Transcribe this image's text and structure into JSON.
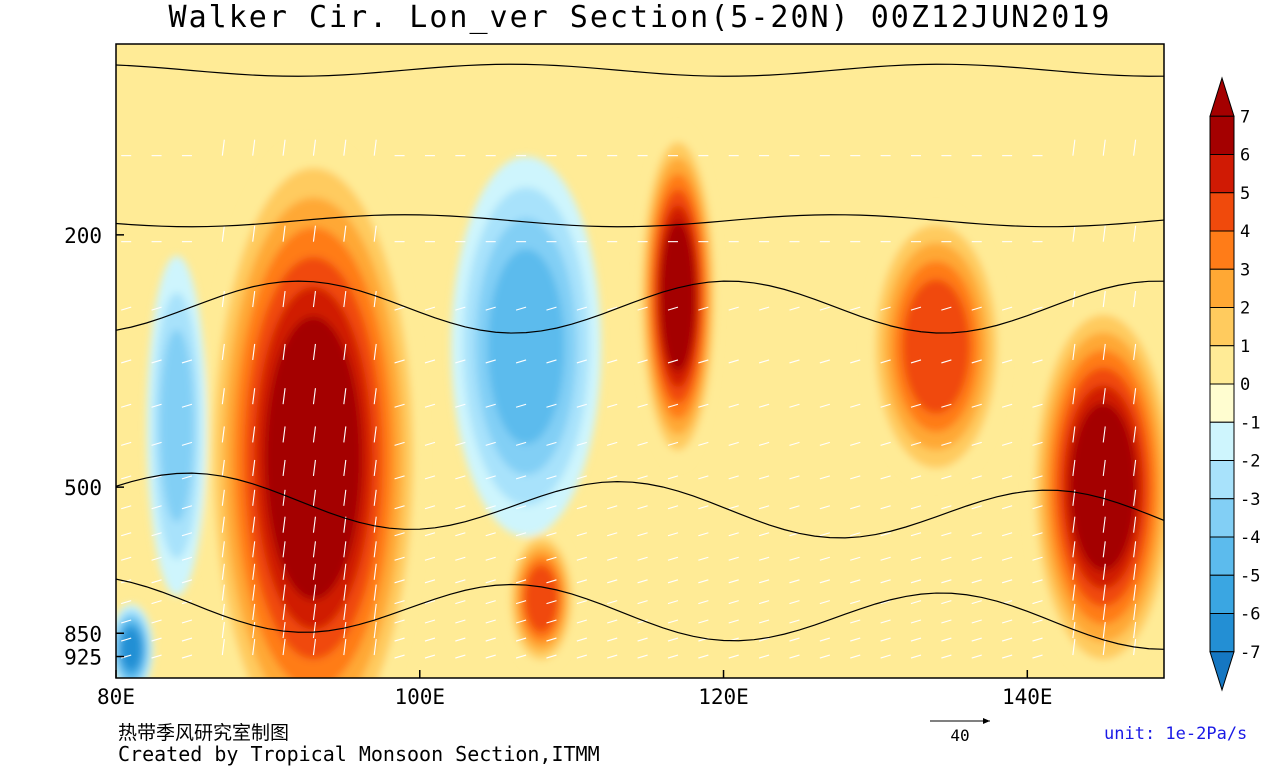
{
  "title": "Walker Cir.  Lon_ver Section(5-20N)  00Z12JUN2019",
  "credit_cn": "热带季风研究室制图",
  "credit_en": "Created by Tropical Monsoon Section,ITMM",
  "unit_label": "unit: 1e-2Pa/s",
  "colors": {
    "unit_text": "#1a1ae6"
  },
  "chart_data": {
    "type": "heatmap",
    "subtype": "longitude-pressure cross-section with streamlines and wind vectors",
    "x": {
      "ticks": [
        80,
        100,
        120,
        140
      ],
      "tick_labels": [
        "80E",
        "100E",
        "120E",
        "140E"
      ],
      "range": [
        80,
        149
      ]
    },
    "y": {
      "ticks": [
        200,
        500,
        850,
        925
      ],
      "tick_labels": [
        "200",
        "500",
        "850",
        "925"
      ],
      "range": [
        100,
        1000
      ],
      "scale": "log",
      "reversed": true
    },
    "colorbar": {
      "levels": [
        -7,
        -6,
        -5,
        -4,
        -3,
        -2,
        -1,
        0,
        1,
        2,
        3,
        4,
        5,
        6,
        7
      ],
      "labels": [
        "7",
        "6",
        "5",
        "4",
        "3",
        "2",
        "1",
        "0",
        "-1",
        "-2",
        "-3",
        "-4",
        "-5",
        "-6",
        "-7"
      ],
      "colors": [
        "#1577c2",
        "#238fd4",
        "#3aa6e2",
        "#5cbbed",
        "#82cff5",
        "#a8e2fb",
        "#cef5fd",
        "#fffdd0",
        "#ffeb96",
        "#ffcb5e",
        "#ffa834",
        "#ff7c18",
        "#f04a0c",
        "#d01a04",
        "#a40000"
      ]
    },
    "features": [
      {
        "kind": "max",
        "lon": 93,
        "p": 450,
        "value": 7
      },
      {
        "kind": "max",
        "lon": 117,
        "p": 250,
        "value": 7
      },
      {
        "kind": "max",
        "lon": 145,
        "p": 500,
        "value": 7
      },
      {
        "kind": "max",
        "lon": 134,
        "p": 300,
        "value": 5
      },
      {
        "kind": "max",
        "lon": 108,
        "p": 750,
        "value": 5
      },
      {
        "kind": "min",
        "lon": 107,
        "p": 300,
        "value": -4
      },
      {
        "kind": "min",
        "lon": 81,
        "p": 900,
        "value": -6
      },
      {
        "kind": "min",
        "lon": 84,
        "p": 400,
        "value": -3
      }
    ],
    "reference_vector": {
      "label": "40"
    }
  }
}
